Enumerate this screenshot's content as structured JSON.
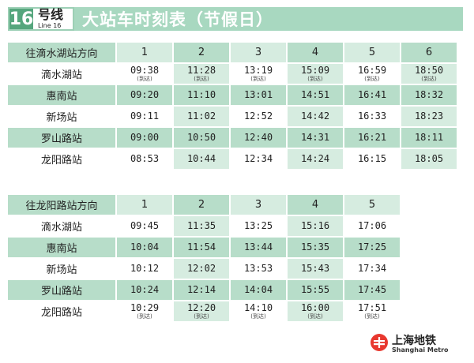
{
  "header": {
    "line_number": "16",
    "line_label_zh": "号线",
    "line_label_en": "Line 16",
    "title": "大站车时刻表（节假日）"
  },
  "colors": {
    "dark_green": "#55a67d",
    "header_green": "#a8d8c0",
    "light_green": "#d6ece0",
    "mid_green": "#b7ddc9",
    "white": "#ffffff"
  },
  "timetable_1": {
    "direction": "往滴水湖站方向",
    "columns": [
      "1",
      "2",
      "3",
      "4",
      "5",
      "6"
    ],
    "rows": [
      {
        "station": "滴水湖站",
        "times": [
          "09:38",
          "11:28",
          "13:19",
          "15:09",
          "16:59",
          "18:50"
        ],
        "note": "(到达)"
      },
      {
        "station": "惠南站",
        "times": [
          "09:20",
          "11:10",
          "13:01",
          "14:51",
          "16:41",
          "18:32"
        ]
      },
      {
        "station": "新场站",
        "times": [
          "09:11",
          "11:02",
          "12:52",
          "14:42",
          "16:33",
          "18:23"
        ]
      },
      {
        "station": "罗山路站",
        "times": [
          "09:00",
          "10:50",
          "12:40",
          "14:31",
          "16:21",
          "18:11"
        ]
      },
      {
        "station": "龙阳路站",
        "times": [
          "08:53",
          "10:44",
          "12:34",
          "14:24",
          "16:15",
          "18:05"
        ]
      }
    ]
  },
  "timetable_2": {
    "direction": "往龙阳路站方向",
    "columns": [
      "1",
      "2",
      "3",
      "4",
      "5"
    ],
    "rows": [
      {
        "station": "滴水湖站",
        "times": [
          "09:45",
          "11:35",
          "13:25",
          "15:16",
          "17:06"
        ]
      },
      {
        "station": "惠南站",
        "times": [
          "10:04",
          "11:54",
          "13:44",
          "15:35",
          "17:25"
        ]
      },
      {
        "station": "新场站",
        "times": [
          "10:12",
          "12:02",
          "13:53",
          "15:43",
          "17:34"
        ]
      },
      {
        "station": "罗山路站",
        "times": [
          "10:24",
          "12:14",
          "14:04",
          "15:55",
          "17:45"
        ]
      },
      {
        "station": "龙阳路站",
        "times": [
          "10:29",
          "12:20",
          "14:10",
          "16:00",
          "17:51"
        ],
        "note": "(到达)"
      }
    ]
  },
  "logo": {
    "name_zh": "上海地铁",
    "name_en": "Shanghai Metro"
  }
}
